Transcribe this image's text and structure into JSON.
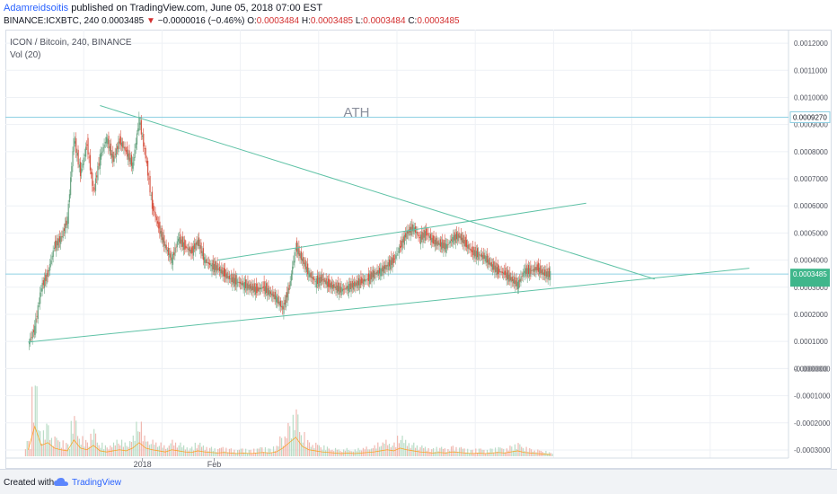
{
  "header": {
    "author": "Adamreidsoitis",
    "published": " published on TradingView.com, June 05, 2018 07:00 EST",
    "symbol": "BINANCE:ICXBTC, 240",
    "last": "0.0003485",
    "arrow": "▼",
    "change": "−0.0000016 (−0.46%)",
    "o_label": "O:",
    "o_val": "0.0003484",
    "h_label": "H:",
    "h_val": "0.0003485",
    "l_label": "L:",
    "l_val": "0.0003484",
    "c_label": "C:",
    "c_val": "0.0003485"
  },
  "legend": {
    "title": "ICON / Bitcoin, 240, BINANCE",
    "vol": "Vol (20)"
  },
  "footer": {
    "created": "Created with",
    "brand": "TradingView"
  },
  "colors": {
    "candle_up": "#6ba583",
    "candle_down": "#d75442",
    "trendline": "#5fc2a6",
    "hline": "#8fd0e3",
    "price_tag": "#3fb68b",
    "ath_tag_border": "#8fd0e3"
  },
  "chart_data": {
    "type": "candlestick",
    "annotation": "ATH",
    "ylim": [
      -0.00033,
      0.00125
    ],
    "y_ticks": [
      "0.0012000",
      "0.0011000",
      "0.0010000",
      "0.0009000",
      "0.0008000",
      "0.0007000",
      "0.0006000",
      "0.0005000",
      "0.0004000",
      "0.0003000",
      "0.0002000",
      "0.0001000",
      "0.0000000",
      "-0.0000000",
      "-0.0001000",
      "-0.0002000",
      "-0.0003000"
    ],
    "y_tick_values": [
      0.0012,
      0.0011,
      0.001,
      0.0009,
      0.0008,
      0.0007,
      0.0006,
      0.0005,
      0.0004,
      0.0003,
      0.0002,
      0.0001,
      0.0,
      -1e-08,
      -0.0001,
      -0.0002,
      -0.0003
    ],
    "x_labels": [
      {
        "label": "2018",
        "day": 21
      },
      {
        "label": "Feb",
        "day": 32
      }
    ],
    "x_range_days": [
      0,
      120
    ],
    "hlines": [
      {
        "label": "0.0009270",
        "value": 0.000927,
        "style": "ath"
      },
      {
        "label": "0.0003485",
        "value": 0.0003485,
        "style": "last"
      }
    ],
    "trendlines": [
      {
        "from": [
          14.5,
          0.00097
        ],
        "to": [
          99.5,
          0.00033
        ]
      },
      {
        "from": [
          32.5,
          0.0004
        ],
        "to": [
          89,
          0.00061
        ]
      },
      {
        "from": [
          3.5,
          9.78e-05
        ],
        "to": [
          114,
          0.00037
        ]
      }
    ],
    "price_path": [
      [
        3.5,
        9e-05
      ],
      [
        4.5,
        0.00015
      ],
      [
        5.5,
        0.0003
      ],
      [
        6.5,
        0.00035
      ],
      [
        7.5,
        0.00045
      ],
      [
        8.5,
        0.00048
      ],
      [
        9.5,
        0.00055
      ],
      [
        10.5,
        0.00085
      ],
      [
        11.5,
        0.00072
      ],
      [
        12.5,
        0.00083
      ],
      [
        13.5,
        0.00065
      ],
      [
        14.5,
        0.00078
      ],
      [
        15.5,
        0.00085
      ],
      [
        16.5,
        0.00077
      ],
      [
        17.5,
        0.00084
      ],
      [
        18.5,
        0.0008
      ],
      [
        19.5,
        0.00075
      ],
      [
        20.5,
        0.00092
      ],
      [
        21.5,
        0.00078
      ],
      [
        22.5,
        0.0006
      ],
      [
        23.5,
        0.00052
      ],
      [
        24.5,
        0.00045
      ],
      [
        25.5,
        0.0004
      ],
      [
        26.5,
        0.00048
      ],
      [
        27.5,
        0.00045
      ],
      [
        28.5,
        0.00043
      ],
      [
        29.5,
        0.00047
      ],
      [
        30.5,
        0.0004
      ],
      [
        31.5,
        0.00038
      ],
      [
        32.5,
        0.00037
      ],
      [
        33.5,
        0.00035
      ],
      [
        34.5,
        0.00033
      ],
      [
        35.5,
        0.00032
      ],
      [
        36.5,
        0.00031
      ],
      [
        37.5,
        0.0003
      ],
      [
        38.5,
        0.00029
      ],
      [
        39.5,
        0.0003
      ],
      [
        40.5,
        0.00028
      ],
      [
        41.5,
        0.00026
      ],
      [
        42.5,
        0.00022
      ],
      [
        43.5,
        0.0003
      ],
      [
        44.5,
        0.00045
      ],
      [
        45.5,
        0.0004
      ],
      [
        46.5,
        0.00035
      ],
      [
        47.5,
        0.00032
      ],
      [
        48.5,
        0.00033
      ],
      [
        49.5,
        0.00031
      ],
      [
        50.5,
        0.0003
      ],
      [
        51.5,
        0.00029
      ],
      [
        52.5,
        0.0003
      ],
      [
        53.5,
        0.00031
      ],
      [
        54.5,
        0.00032
      ],
      [
        55.5,
        0.00033
      ],
      [
        56.5,
        0.00035
      ],
      [
        57.5,
        0.00036
      ],
      [
        58.5,
        0.00038
      ],
      [
        59.5,
        0.0004
      ],
      [
        60.5,
        0.00045
      ],
      [
        61.5,
        0.0005
      ],
      [
        62.5,
        0.00052
      ],
      [
        63.5,
        0.00048
      ],
      [
        64.5,
        0.0005
      ],
      [
        65.5,
        0.00047
      ],
      [
        66.5,
        0.00046
      ],
      [
        67.5,
        0.00045
      ],
      [
        68.5,
        0.00048
      ],
      [
        69.5,
        0.00049
      ],
      [
        70.5,
        0.00046
      ],
      [
        71.5,
        0.00043
      ],
      [
        72.5,
        0.00042
      ],
      [
        73.5,
        0.00041
      ],
      [
        74.5,
        0.00038
      ],
      [
        75.5,
        0.00036
      ],
      [
        76.5,
        0.00035
      ],
      [
        77.5,
        0.00033
      ],
      [
        78.5,
        0.00031
      ],
      [
        79.5,
        0.00036
      ],
      [
        80.5,
        0.00036
      ],
      [
        81.5,
        0.00037
      ],
      [
        82.5,
        0.00035
      ],
      [
        83.5,
        0.000348
      ]
    ],
    "volume_path": [
      [
        3.5,
        0.12
      ],
      [
        4.5,
        0.55
      ],
      [
        5.5,
        0.2
      ],
      [
        6.5,
        0.25
      ],
      [
        7.5,
        0.15
      ],
      [
        8.5,
        0.12
      ],
      [
        9.5,
        0.1
      ],
      [
        10.5,
        0.3
      ],
      [
        11.5,
        0.15
      ],
      [
        12.5,
        0.12
      ],
      [
        13.5,
        0.2
      ],
      [
        14.5,
        0.1
      ],
      [
        15.5,
        0.08
      ],
      [
        16.5,
        0.1
      ],
      [
        17.5,
        0.12
      ],
      [
        18.5,
        0.1
      ],
      [
        19.5,
        0.15
      ],
      [
        20.5,
        0.25
      ],
      [
        21.5,
        0.15
      ],
      [
        22.5,
        0.12
      ],
      [
        23.5,
        0.1
      ],
      [
        24.5,
        0.08
      ],
      [
        25.5,
        0.12
      ],
      [
        26.5,
        0.1
      ],
      [
        27.5,
        0.08
      ],
      [
        28.5,
        0.07
      ],
      [
        29.5,
        0.1
      ],
      [
        30.5,
        0.08
      ],
      [
        31.5,
        0.07
      ],
      [
        32.5,
        0.06
      ],
      [
        33.5,
        0.07
      ],
      [
        34.5,
        0.06
      ],
      [
        35.5,
        0.05
      ],
      [
        36.5,
        0.06
      ],
      [
        37.5,
        0.05
      ],
      [
        38.5,
        0.06
      ],
      [
        39.5,
        0.07
      ],
      [
        40.5,
        0.06
      ],
      [
        41.5,
        0.08
      ],
      [
        42.5,
        0.15
      ],
      [
        43.5,
        0.25
      ],
      [
        44.5,
        0.35
      ],
      [
        45.5,
        0.18
      ],
      [
        46.5,
        0.12
      ],
      [
        47.5,
        0.1
      ],
      [
        48.5,
        0.08
      ],
      [
        49.5,
        0.07
      ],
      [
        50.5,
        0.06
      ],
      [
        51.5,
        0.05
      ],
      [
        52.5,
        0.06
      ],
      [
        53.5,
        0.05
      ],
      [
        54.5,
        0.06
      ],
      [
        55.5,
        0.07
      ],
      [
        56.5,
        0.08
      ],
      [
        57.5,
        0.1
      ],
      [
        58.5,
        0.12
      ],
      [
        59.5,
        0.1
      ],
      [
        60.5,
        0.15
      ],
      [
        61.5,
        0.12
      ],
      [
        62.5,
        0.1
      ],
      [
        63.5,
        0.08
      ],
      [
        64.5,
        0.07
      ],
      [
        65.5,
        0.06
      ],
      [
        66.5,
        0.07
      ],
      [
        67.5,
        0.06
      ],
      [
        68.5,
        0.08
      ],
      [
        69.5,
        0.07
      ],
      [
        70.5,
        0.06
      ],
      [
        71.5,
        0.05
      ],
      [
        72.5,
        0.06
      ],
      [
        73.5,
        0.05
      ],
      [
        74.5,
        0.06
      ],
      [
        75.5,
        0.07
      ],
      [
        76.5,
        0.06
      ],
      [
        77.5,
        0.08
      ],
      [
        78.5,
        0.1
      ],
      [
        79.5,
        0.07
      ],
      [
        80.5,
        0.06
      ],
      [
        81.5,
        0.05
      ],
      [
        82.5,
        0.04
      ],
      [
        83.5,
        0.03
      ]
    ]
  }
}
